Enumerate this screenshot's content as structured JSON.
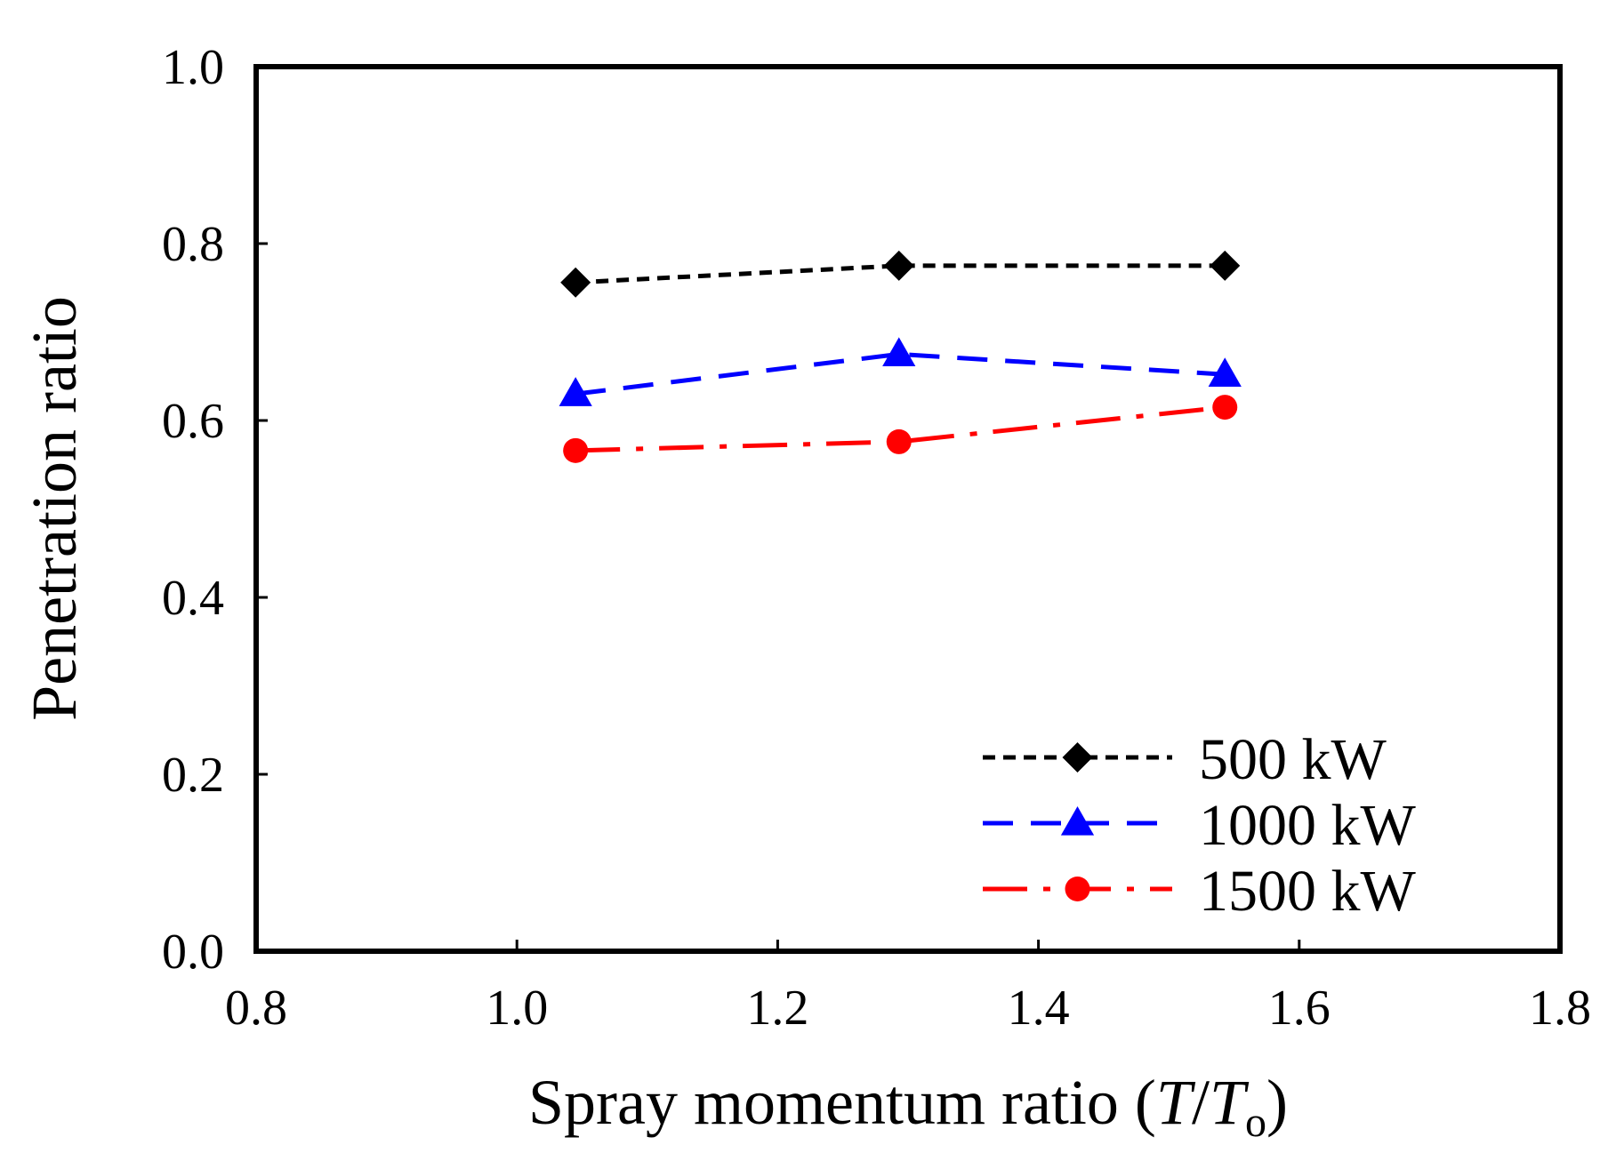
{
  "chart_data": {
    "type": "line",
    "xlabel": {
      "prefix": "Spray momentum ratio (",
      "var1": "T",
      "slash": "/",
      "var2": "T",
      "subscript": "o",
      "suffix": ")"
    },
    "ylabel": "Penetration ratio",
    "xlim": [
      0.8,
      1.8
    ],
    "ylim": [
      0.0,
      1.0
    ],
    "xticks": [
      "0.8",
      "1.0",
      "1.2",
      "1.4",
      "1.6",
      "1.8"
    ],
    "yticks": [
      "0.0",
      "0.2",
      "0.4",
      "0.6",
      "0.8",
      "1.0"
    ],
    "grid": false,
    "legend_position": "bottom-right",
    "series": [
      {
        "name": "500 kW",
        "color": "#000000",
        "marker": "diamond",
        "line_style": "dotted",
        "x": [
          1.045,
          1.293,
          1.543
        ],
        "y": [
          0.756,
          0.775,
          0.775
        ]
      },
      {
        "name": "1000 kW",
        "color": "#0000ff",
        "marker": "triangle",
        "line_style": "dashed",
        "x": [
          1.045,
          1.293,
          1.543
        ],
        "y": [
          0.63,
          0.675,
          0.652
        ]
      },
      {
        "name": "1500 kW",
        "color": "#ff0000",
        "marker": "circle",
        "line_style": "dash-dot",
        "x": [
          1.045,
          1.293,
          1.543
        ],
        "y": [
          0.566,
          0.576,
          0.615
        ]
      }
    ]
  }
}
